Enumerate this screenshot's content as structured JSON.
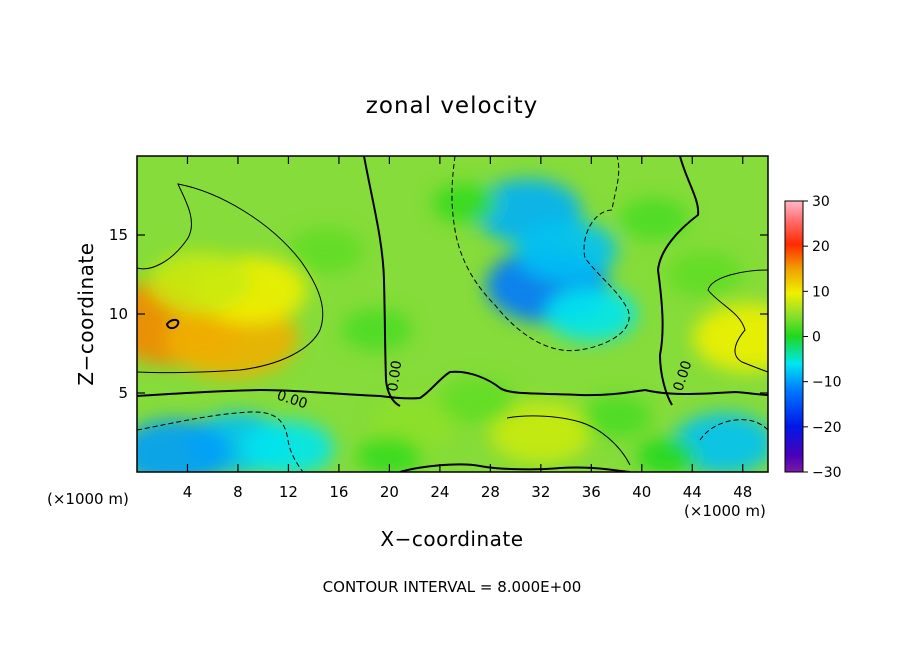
{
  "chart_data": {
    "type": "heatmap",
    "title": "zonal velocity",
    "xlabel": "X−coordinate",
    "ylabel": "Z−coordinate",
    "x_unit_left": "(×1000 m)",
    "x_unit_right": "(×1000 m)",
    "xlim": [
      0,
      50
    ],
    "ylim": [
      0,
      20
    ],
    "x_ticks": [
      4,
      8,
      12,
      16,
      20,
      24,
      28,
      32,
      36,
      40,
      44,
      48
    ],
    "y_ticks": [
      5,
      10,
      15
    ],
    "colorbar": {
      "range": [
        -30,
        30
      ],
      "ticks": [
        30,
        20,
        10,
        0,
        -10,
        -20,
        -30
      ],
      "tick_labels": [
        "30",
        "20",
        "10",
        "0",
        "−10",
        "−20",
        "−30"
      ]
    },
    "contour_labels": [
      "0.00",
      "0.00",
      "0.00"
    ],
    "footer": "CONTOUR INTERVAL = 8.000E+00",
    "features": [
      {
        "x": 3,
        "z": 9.5,
        "value": 16
      },
      {
        "x": 7.5,
        "z": 8.5,
        "value": 14
      },
      {
        "x": 9,
        "z": 11.5,
        "value": 10
      },
      {
        "x": 5,
        "z": 12,
        "value": 8
      },
      {
        "x": 8,
        "z": 1.8,
        "value": -8
      },
      {
        "x": 3,
        "z": 1.2,
        "value": -10
      },
      {
        "x": 12,
        "z": 1.5,
        "value": -6
      },
      {
        "x": 32.5,
        "z": 11.8,
        "value": -12
      },
      {
        "x": 31,
        "z": 16.5,
        "value": -9
      },
      {
        "x": 34,
        "z": 14,
        "value": -8
      },
      {
        "x": 36,
        "z": 10,
        "value": -6
      },
      {
        "x": 46.5,
        "z": 1.8,
        "value": -8
      },
      {
        "x": 48.5,
        "z": 8.5,
        "value": 10
      },
      {
        "x": 45,
        "z": 12.5,
        "value": 3
      },
      {
        "x": 32,
        "z": 2.5,
        "value": 8
      },
      {
        "x": 22,
        "z": 3,
        "value": 5
      },
      {
        "x": 15,
        "z": 14,
        "value": 3
      },
      {
        "x": 19,
        "z": 9,
        "value": 2
      },
      {
        "x": 26,
        "z": 17,
        "value": 1
      },
      {
        "x": 41,
        "z": 16,
        "value": 2
      },
      {
        "x": 27,
        "z": 4.5,
        "value": 3
      },
      {
        "x": 20,
        "z": 1,
        "value": 1
      },
      {
        "x": 38,
        "z": 3.5,
        "value": 2
      },
      {
        "x": 42,
        "z": 1,
        "value": 0
      }
    ],
    "grid": false
  }
}
